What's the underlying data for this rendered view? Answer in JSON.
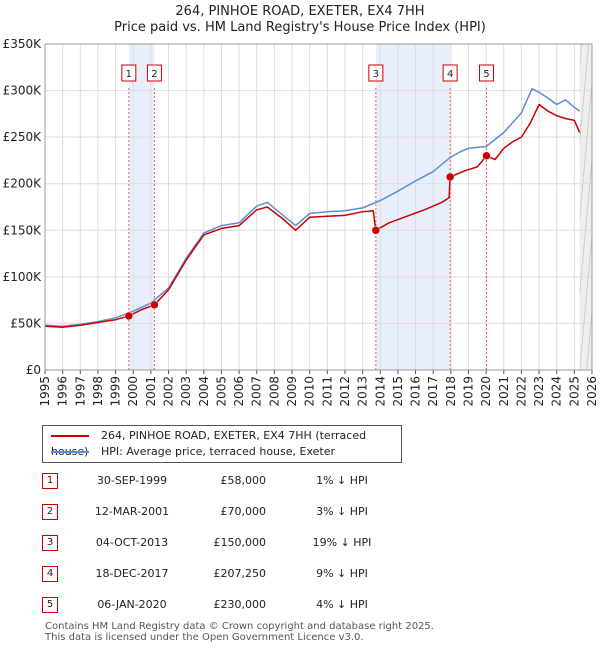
{
  "chart_data": {
    "type": "line",
    "title": "264, PINHOE ROAD, EXETER, EX4 7HH",
    "subtitle": "Price paid vs. HM Land Registry's House Price Index (HPI)",
    "xlim": [
      1995,
      2026
    ],
    "ylim": [
      0,
      350000
    ],
    "x_ticks": [
      "1995",
      "1996",
      "1997",
      "1998",
      "1999",
      "2000",
      "2001",
      "2002",
      "2003",
      "2004",
      "2005",
      "2006",
      "2007",
      "2008",
      "2009",
      "2010",
      "2011",
      "2012",
      "2013",
      "2014",
      "2015",
      "2016",
      "2017",
      "2018",
      "2019",
      "2020",
      "2021",
      "2022",
      "2023",
      "2024",
      "2025",
      "2026"
    ],
    "y_ticks": [
      {
        "value": 0,
        "label": "£0"
      },
      {
        "value": 50000,
        "label": "£50K"
      },
      {
        "value": 100000,
        "label": "£100K"
      },
      {
        "value": 150000,
        "label": "£150K"
      },
      {
        "value": 200000,
        "label": "£200K"
      },
      {
        "value": 250000,
        "label": "£250K"
      },
      {
        "value": 300000,
        "label": "£300K"
      },
      {
        "value": 350000,
        "label": "£350K"
      }
    ],
    "series": [
      {
        "name": "264, PINHOE ROAD, EXETER, EX4 7HH (terraced house)",
        "color": "#cc0000",
        "points": [
          [
            1995.0,
            47000
          ],
          [
            1996.0,
            46000
          ],
          [
            1997.0,
            48000
          ],
          [
            1998.0,
            51000
          ],
          [
            1999.0,
            54000
          ],
          [
            1999.75,
            58000
          ],
          [
            2000.5,
            65000
          ],
          [
            2001.2,
            70000
          ],
          [
            2002.0,
            86000
          ],
          [
            2003.0,
            118000
          ],
          [
            2004.0,
            145000
          ],
          [
            2005.0,
            152000
          ],
          [
            2006.0,
            155000
          ],
          [
            2007.0,
            172000
          ],
          [
            2007.6,
            175000
          ],
          [
            2008.5,
            162000
          ],
          [
            2009.2,
            150000
          ],
          [
            2010.0,
            164000
          ],
          [
            2011.0,
            165000
          ],
          [
            2012.0,
            166000
          ],
          [
            2013.0,
            170000
          ],
          [
            2013.6,
            171000
          ],
          [
            2013.75,
            150000
          ],
          [
            2014.5,
            158000
          ],
          [
            2015.5,
            165000
          ],
          [
            2016.5,
            172000
          ],
          [
            2017.5,
            180000
          ],
          [
            2017.9,
            185000
          ],
          [
            2017.96,
            207250
          ],
          [
            2018.8,
            214000
          ],
          [
            2019.5,
            218000
          ],
          [
            2020.02,
            230000
          ],
          [
            2020.5,
            226000
          ],
          [
            2021.0,
            238000
          ],
          [
            2021.5,
            245000
          ],
          [
            2022.0,
            250000
          ],
          [
            2022.5,
            265000
          ],
          [
            2023.0,
            285000
          ],
          [
            2023.5,
            278000
          ],
          [
            2024.0,
            273000
          ],
          [
            2024.5,
            270000
          ],
          [
            2025.0,
            268000
          ],
          [
            2025.3,
            255000
          ]
        ]
      },
      {
        "name": "HPI: Average price, terraced house, Exeter",
        "color": "#5b8ed6",
        "points": [
          [
            1995.0,
            48000
          ],
          [
            1996.0,
            47000
          ],
          [
            1997.0,
            49000
          ],
          [
            1998.0,
            52000
          ],
          [
            1999.0,
            56000
          ],
          [
            2000.0,
            63000
          ],
          [
            2001.0,
            72000
          ],
          [
            2002.0,
            88000
          ],
          [
            2003.0,
            120000
          ],
          [
            2004.0,
            147000
          ],
          [
            2005.0,
            155000
          ],
          [
            2006.0,
            158000
          ],
          [
            2007.0,
            176000
          ],
          [
            2007.6,
            180000
          ],
          [
            2008.5,
            166000
          ],
          [
            2009.2,
            155000
          ],
          [
            2010.0,
            168000
          ],
          [
            2011.0,
            170000
          ],
          [
            2012.0,
            171000
          ],
          [
            2013.0,
            174000
          ],
          [
            2014.0,
            182000
          ],
          [
            2015.0,
            192000
          ],
          [
            2016.0,
            203000
          ],
          [
            2017.0,
            213000
          ],
          [
            2017.96,
            228000
          ],
          [
            2018.5,
            234000
          ],
          [
            2019.0,
            238000
          ],
          [
            2020.0,
            240000
          ],
          [
            2021.0,
            255000
          ],
          [
            2022.0,
            276000
          ],
          [
            2022.6,
            302000
          ],
          [
            2023.0,
            298000
          ],
          [
            2023.5,
            292000
          ],
          [
            2024.0,
            285000
          ],
          [
            2024.5,
            290000
          ],
          [
            2025.0,
            282000
          ],
          [
            2025.3,
            278000
          ]
        ]
      }
    ],
    "transactions": [
      {
        "num": "1",
        "year": 1999.75,
        "price": 58000
      },
      {
        "num": "2",
        "year": 2001.2,
        "price": 70000
      },
      {
        "num": "3",
        "year": 2013.75,
        "price": 150000
      },
      {
        "num": "4",
        "year": 2017.96,
        "price": 207250
      },
      {
        "num": "5",
        "year": 2020.02,
        "price": 230000
      }
    ],
    "shaded_ranges": [
      [
        1999.75,
        2001.2
      ],
      [
        2013.75,
        2017.96
      ]
    ],
    "forecast_start": 2025.3
  },
  "legend": {
    "property": "264, PINHOE ROAD, EXETER, EX4 7HH (terraced house)",
    "hpi": "HPI: Average price, terraced house, Exeter"
  },
  "table": [
    {
      "num": "1",
      "date": "30-SEP-1999",
      "price": "£58,000",
      "hpi": "1% ↓ HPI"
    },
    {
      "num": "2",
      "date": "12-MAR-2001",
      "price": "£70,000",
      "hpi": "3% ↓ HPI"
    },
    {
      "num": "3",
      "date": "04-OCT-2013",
      "price": "£150,000",
      "hpi": "19% ↓ HPI"
    },
    {
      "num": "4",
      "date": "18-DEC-2017",
      "price": "£207,250",
      "hpi": "9% ↓ HPI"
    },
    {
      "num": "5",
      "date": "06-JAN-2020",
      "price": "£230,000",
      "hpi": "4% ↓ HPI"
    }
  ],
  "footer": {
    "line1": "Contains HM Land Registry data © Crown copyright and database right 2025.",
    "line2": "This data is licensed under the Open Government Licence v3.0."
  },
  "colors": {
    "property": "#cc0000",
    "hpi": "#5b8ed6",
    "shade": "#e8eefb",
    "grid": "#dddddd"
  }
}
